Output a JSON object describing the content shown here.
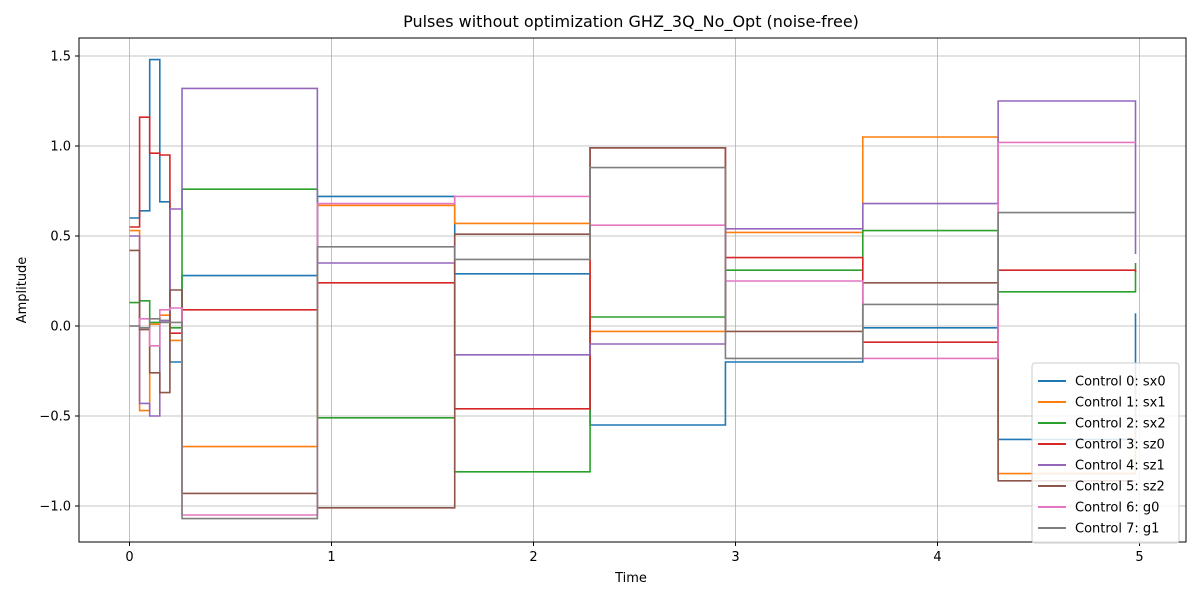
{
  "chart_data": {
    "type": "line",
    "step": "post",
    "title": "Pulses without optimization GHZ_3Q_No_Opt (noise-free)",
    "xlabel": "Time",
    "ylabel": "Amplitude",
    "xlim": [
      -0.25,
      5.23
    ],
    "ylim": [
      -1.2,
      1.6
    ],
    "xticks": [
      0,
      1,
      2,
      3,
      4,
      5
    ],
    "yticks": [
      -1.0,
      -0.5,
      0.0,
      0.5,
      1.0,
      1.5
    ],
    "ytick_labels": [
      "−1.0",
      "−0.5",
      "0.0",
      "0.5",
      "1.0",
      "1.5"
    ],
    "grid": true,
    "legend": {
      "position": "lower-right"
    },
    "x": [
      0,
      0.05,
      0.1,
      0.15,
      0.2,
      0.26,
      0.93,
      1.61,
      2.28,
      2.95,
      3.63,
      4.3,
      4.98
    ],
    "series": [
      {
        "name": "Control 0: sx0",
        "color": "#1f77b4",
        "values": [
          0.6,
          0.64,
          1.48,
          0.69,
          -0.2,
          0.28,
          0.72,
          0.29,
          -0.55,
          -0.2,
          -0.01,
          -0.63,
          0.07
        ]
      },
      {
        "name": "Control 1: sx1",
        "color": "#ff7f0e",
        "values": [
          0.53,
          -0.47,
          0.01,
          0.06,
          -0.08,
          -0.67,
          0.67,
          0.57,
          -0.03,
          0.52,
          1.05,
          -0.82,
          -0.3
        ]
      },
      {
        "name": "Control 2: sx2",
        "color": "#2ca02c",
        "values": [
          0.13,
          0.14,
          0.02,
          0.03,
          -0.01,
          0.76,
          -0.51,
          -0.81,
          0.05,
          0.31,
          0.53,
          0.19,
          0.35
        ]
      },
      {
        "name": "Control 3: sz0",
        "color": "#d62728",
        "values": [
          0.55,
          1.16,
          0.96,
          0.95,
          -0.04,
          0.09,
          0.24,
          -0.46,
          0.99,
          0.38,
          -0.09,
          0.31,
          0.3
        ]
      },
      {
        "name": "Control 4: sz1",
        "color": "#9467bd",
        "values": [
          0.5,
          -0.43,
          -0.5,
          0.03,
          0.65,
          1.32,
          0.35,
          -0.16,
          -0.1,
          0.54,
          0.68,
          1.25,
          0.4
        ]
      },
      {
        "name": "Control 5: sz2",
        "color": "#8c564b",
        "values": [
          0.42,
          -0.02,
          -0.26,
          -0.37,
          0.2,
          -0.93,
          -1.01,
          0.51,
          0.99,
          -0.03,
          0.24,
          -0.86,
          -0.86
        ]
      },
      {
        "name": "Control 6: g0",
        "color": "#e377c2",
        "values": [
          0.0,
          0.04,
          -0.11,
          0.09,
          0.1,
          -1.05,
          0.68,
          0.72,
          0.56,
          0.25,
          -0.18,
          1.02,
          1.02
        ]
      },
      {
        "name": "Control 7: g1",
        "color": "#7f7f7f",
        "values": [
          0.0,
          -0.01,
          0.04,
          0.02,
          0.02,
          -1.07,
          0.44,
          0.37,
          0.88,
          -0.18,
          0.12,
          0.63,
          0.63
        ]
      }
    ]
  }
}
